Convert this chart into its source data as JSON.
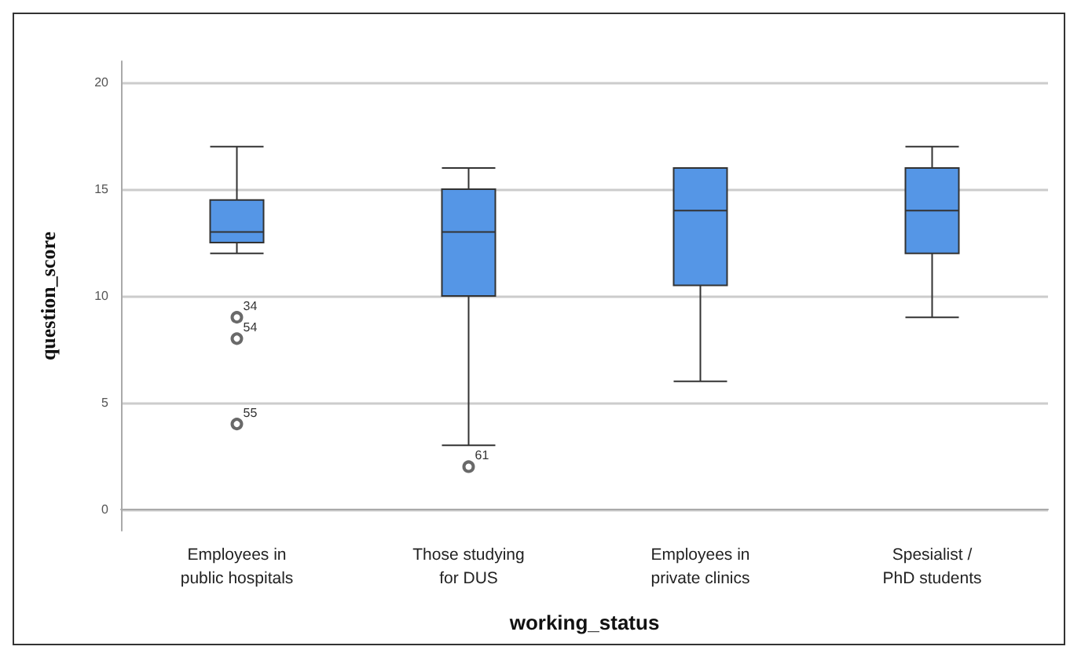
{
  "chart_data": {
    "type": "box",
    "xlabel": "working_status",
    "ylabel": "question_score",
    "categories": [
      "Employees in\npublic hospitals",
      "Those studying\nfor DUS",
      "Employees in\nprivate clinics",
      "Spesialist /\nPhD students"
    ],
    "boxes": [
      {
        "low": 12,
        "q1": 12.5,
        "median": 13,
        "q3": 14.5,
        "high": 17,
        "outliers": [
          9,
          8,
          4
        ]
      },
      {
        "low": 3,
        "q1": 10,
        "median": 13,
        "q3": 15,
        "high": 16,
        "outliers": [
          2
        ]
      },
      {
        "low": 6,
        "q1": 10.5,
        "median": 14,
        "q3": 16,
        "high": 16
      },
      {
        "low": 9,
        "q1": 12,
        "median": 14,
        "q3": 16,
        "high": 17
      }
    ],
    "color": "#5596e6",
    "ylim": [
      -1,
      21
    ],
    "yticks": [
      0,
      5,
      10,
      15,
      20
    ],
    "grid": "y",
    "annotations": [
      "34",
      "54",
      "55",
      "61"
    ]
  }
}
